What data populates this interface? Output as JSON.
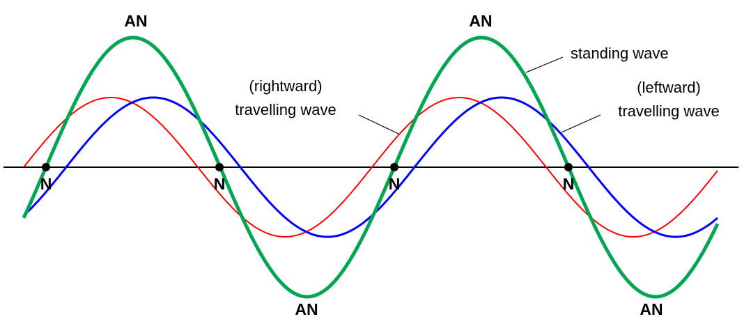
{
  "colors": {
    "rightward": "#ff0000",
    "leftward": "#0000ff",
    "standing": "#00a651",
    "axis": "#000000",
    "node": "#000000"
  },
  "labels": {
    "antinode": "AN",
    "node": "N",
    "standing_wave": "standing wave",
    "rightward_line1": "(rightward)",
    "rightward_line2": "travelling wave",
    "leftward_line1": "(leftward)",
    "leftward_line2": "travelling wave"
  }
}
